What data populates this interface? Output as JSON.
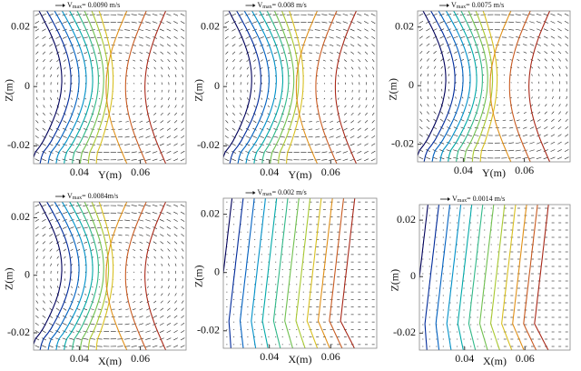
{
  "chart_data": [
    {
      "type": "contour",
      "vector_label": {
        "symbol": "V",
        "subscript": "max",
        "text": "= 0.0090 m/s"
      },
      "xlabel": "Y(m)",
      "ylabel": "Z(m)",
      "xlim": [
        0.025,
        0.075
      ],
      "ylim": [
        -0.026,
        0.0255
      ],
      "xticks": [
        0.04,
        0.06
      ],
      "yticks": [
        -0.02,
        0,
        0.02
      ]
    },
    {
      "type": "contour",
      "vector_label": {
        "symbol": "V",
        "subscript": "max",
        "text": "= 0.008 m/s"
      },
      "xlabel": "Y(m)",
      "ylabel": "Z(m)",
      "xlim": [
        0.025,
        0.075
      ],
      "ylim": [
        -0.026,
        0.0255
      ],
      "xticks": [
        0.04,
        0.06
      ],
      "yticks": [
        -0.02,
        0,
        0.02
      ]
    },
    {
      "type": "contour",
      "vector_label": {
        "symbol": "V",
        "subscript": "max",
        "text": "= 0.0075 m/s"
      },
      "xlabel": "Y(m)",
      "ylabel": "Z(m)",
      "xlim": [
        0.025,
        0.075
      ],
      "ylim": [
        -0.026,
        0.0255
      ],
      "xticks": [
        0.04,
        0.06
      ],
      "yticks": [
        -0.02,
        0,
        0.02
      ]
    },
    {
      "type": "contour",
      "vector_label": {
        "symbol": "V",
        "subscript": "max",
        "text": "= 0.0084m/s"
      },
      "xlabel": "X(m)",
      "ylabel": "Z(m)",
      "xlim": [
        0.025,
        0.075
      ],
      "ylim": [
        -0.026,
        0.0255
      ],
      "xticks": [
        0.04,
        0.06
      ],
      "yticks": [
        -0.02,
        0,
        0.02
      ]
    },
    {
      "type": "contour",
      "vector_label": {
        "symbol": "V",
        "subscript": "max",
        "text": "= 0.002 m/s"
      },
      "xlabel": "X(m)",
      "ylabel": "Z(m)",
      "xlim": [
        0.025,
        0.075
      ],
      "ylim": [
        -0.026,
        0.0255
      ],
      "xticks": [
        0.04,
        0.06
      ],
      "yticks": [
        -0.02,
        0,
        0.02
      ]
    },
    {
      "type": "contour",
      "vector_label": {
        "symbol": "V",
        "subscript": "max",
        "text": "= 0.0014 m/s"
      },
      "xlabel": "X(m)",
      "ylabel": "Z(m)",
      "xlim": [
        0.025,
        0.075
      ],
      "ylim": [
        -0.026,
        0.0255
      ],
      "xticks": [
        0.04,
        0.06
      ],
      "yticks": [
        -0.02,
        0,
        0.02
      ]
    }
  ]
}
